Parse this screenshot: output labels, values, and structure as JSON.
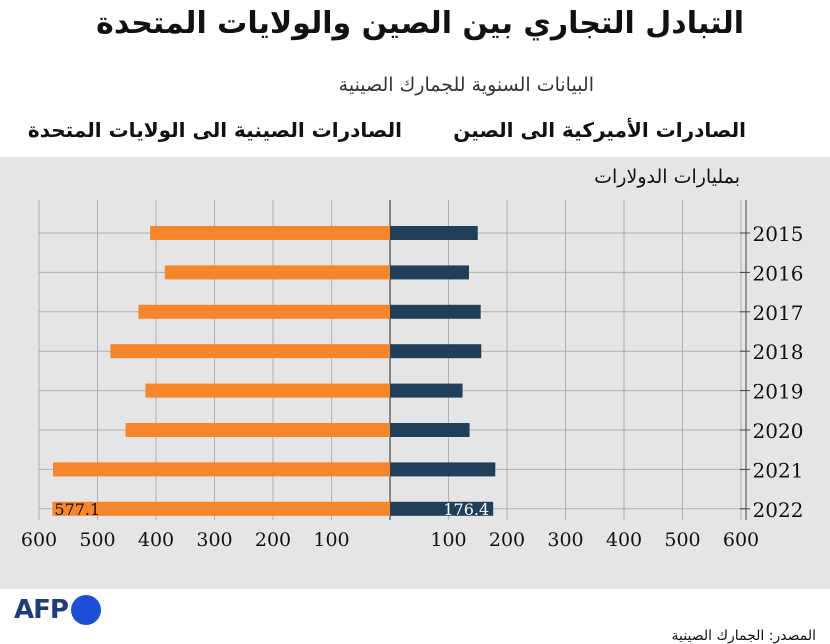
{
  "title": "التبادل التجاري بين الصين والولايات المتحدة",
  "subtitle": "البيانات السنوية للجمارك الصينية",
  "unit_label": "بمليارات الدولارات",
  "source": "المصدر: الجمارك الصينية",
  "logo_text": "AFP",
  "colors": {
    "china_exports": "#f5862a",
    "us_exports": "#1f3f5b",
    "panel": "#e5e5e5",
    "grid": "#b0b0b0"
  },
  "chart_data": {
    "type": "bar",
    "orientation": "horizontal-diverging",
    "categories": [
      "2015",
      "2016",
      "2017",
      "2018",
      "2019",
      "2020",
      "2021",
      "2022"
    ],
    "series": [
      {
        "name": "الصادرات الصينية الى الولايات المتحدة",
        "side": "left",
        "values": [
          410,
          385,
          430,
          478,
          418,
          452,
          576,
          577.1
        ]
      },
      {
        "name": "الصادرات الأميركية الى الصين",
        "side": "right",
        "values": [
          150,
          135,
          155,
          156,
          124,
          136,
          180,
          176.4
        ]
      }
    ],
    "data_labels": {
      "2022": {
        "left": "577.1",
        "right": "176.4"
      }
    },
    "x_ticks_left": [
      600,
      500,
      400,
      300,
      200,
      100
    ],
    "x_ticks_right": [
      100,
      200,
      300,
      400,
      500,
      600
    ],
    "xlim": [
      0,
      600
    ],
    "grid": true,
    "legend": "top"
  }
}
